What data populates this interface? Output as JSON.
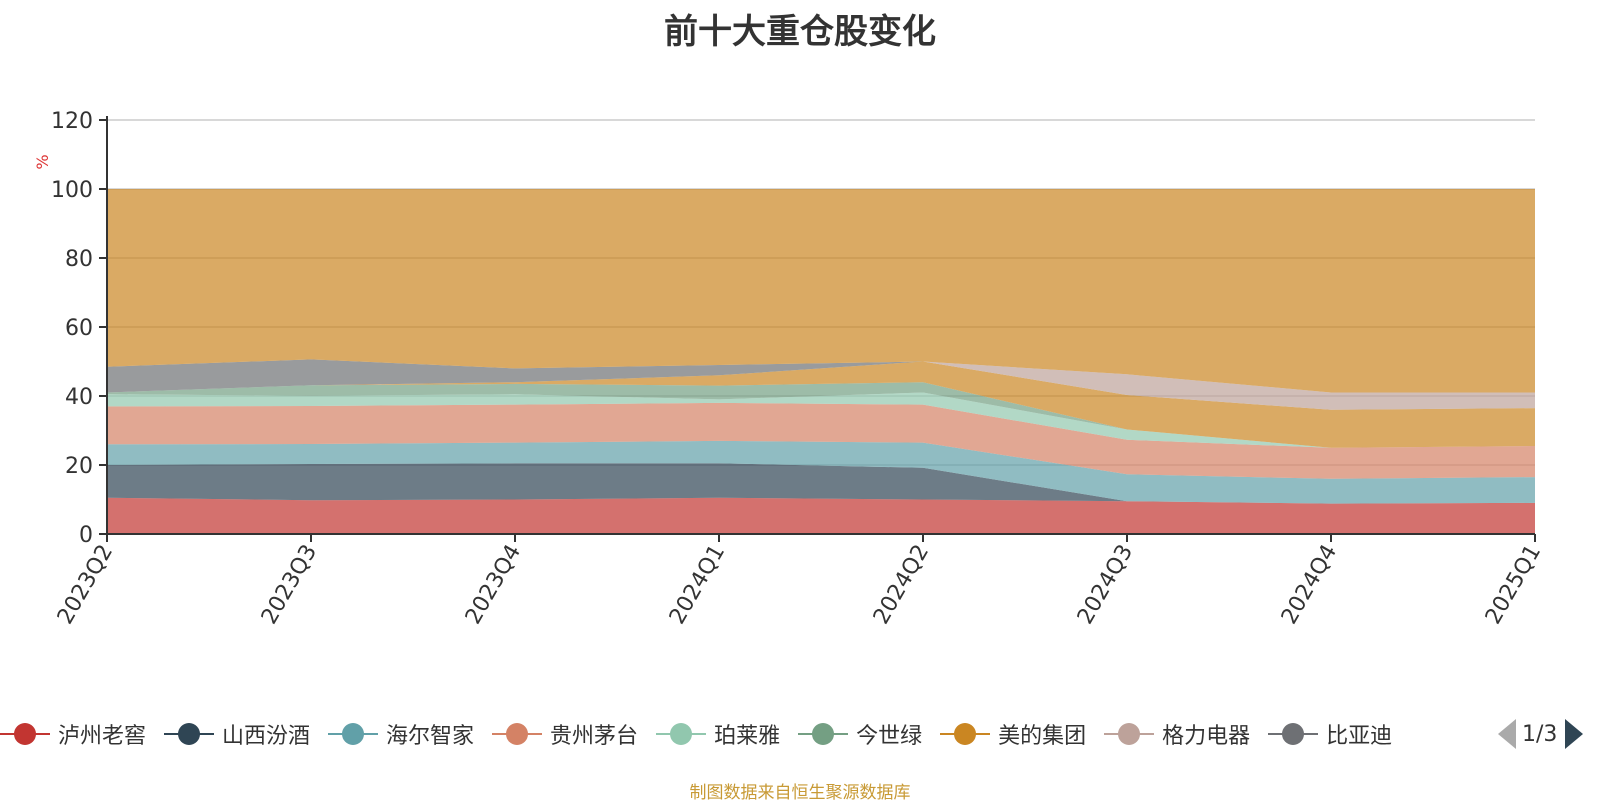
{
  "chart_data": {
    "type": "area",
    "stacked": true,
    "title": "前十大重仓股变化",
    "ylabel": "%",
    "ylim": [
      0,
      120
    ],
    "yticks": [
      0,
      20,
      40,
      60,
      80,
      100,
      120
    ],
    "grid": true,
    "legend_position": "bottom",
    "x": [
      "2023Q2",
      "2023Q3",
      "2023Q4",
      "2024Q1",
      "2024Q2",
      "2024Q3",
      "2024Q4",
      "2025Q1"
    ],
    "series": [
      {
        "name": "泸州老窖",
        "color": "#c23531",
        "values": [
          10.5,
          9.8,
          10.0,
          10.5,
          10.0,
          9.5,
          8.8,
          9.0
        ]
      },
      {
        "name": "山西汾酒",
        "color": "#2f4554",
        "values": [
          9.5,
          10.5,
          10.5,
          10.0,
          9.2,
          0,
          0,
          0
        ]
      },
      {
        "name": "海尔智家",
        "color": "#61a0a8",
        "values": [
          6.0,
          5.8,
          6.0,
          6.5,
          7.3,
          7.8,
          7.2,
          7.5
        ]
      },
      {
        "name": "贵州茅台",
        "color": "#d48265",
        "values": [
          11.0,
          11.0,
          11.0,
          11.0,
          11.0,
          10.0,
          9.0,
          9.0
        ]
      },
      {
        "name": "珀莱雅",
        "color": "#91c7ae",
        "values": [
          3.5,
          3.0,
          3.0,
          1.0,
          3.5,
          3.0,
          0,
          0
        ]
      },
      {
        "name": "今世绿",
        "color": "#749f83",
        "values": [
          0.5,
          3.0,
          3.0,
          4.0,
          3.0,
          0,
          0,
          0
        ]
      },
      {
        "name": "美的集团",
        "color": "#ca8622",
        "values": [
          0,
          0,
          0.5,
          3.0,
          6.0,
          10.0,
          11.0,
          11.0
        ]
      },
      {
        "name": "格力电器",
        "color": "#bda29a",
        "values": [
          0,
          0,
          0,
          0,
          0,
          6.0,
          5.0,
          4.5
        ]
      },
      {
        "name": "比亚迪",
        "color": "#6e7074",
        "values": [
          7.5,
          7.5,
          4.0,
          3.0,
          0,
          0,
          0,
          0
        ]
      },
      {
        "name": "",
        "color": "#546570",
        "values": [
          0,
          0,
          0,
          0,
          0,
          0,
          0,
          0
        ]
      }
    ],
    "remainder_color": "#ca8622",
    "top_total": 100
  },
  "legend": {
    "items": [
      {
        "label": "泸州老窖",
        "color": "#c23531"
      },
      {
        "label": "山西汾酒",
        "color": "#2f4554"
      },
      {
        "label": "海尔智家",
        "color": "#61a0a8"
      },
      {
        "label": "贵州茅台",
        "color": "#d48265"
      },
      {
        "label": "珀莱雅",
        "color": "#91c7ae"
      },
      {
        "label": "今世绿",
        "color": "#749f83"
      },
      {
        "label": "美的集团",
        "color": "#ca8622"
      },
      {
        "label": "格力电器",
        "color": "#bda29a"
      },
      {
        "label": "比亚迪",
        "color": "#6e7074"
      }
    ],
    "page": "1/3"
  },
  "footer": "制图数据来自恒生聚源数据库"
}
